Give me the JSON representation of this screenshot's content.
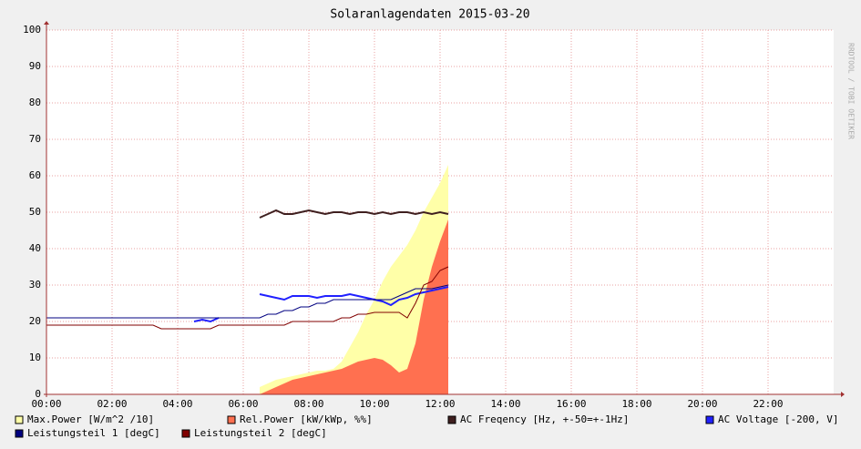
{
  "chart_data": {
    "type": "line",
    "title": "Solaranlagendaten 2015-03-20",
    "watermark": "RRDTOOL / TOBI OETIKER",
    "x": [
      0,
      0.25,
      0.5,
      0.75,
      1,
      1.25,
      1.5,
      1.75,
      2,
      2.25,
      2.5,
      2.75,
      3,
      3.25,
      3.5,
      3.75,
      4,
      4.25,
      4.5,
      4.75,
      5,
      5.25,
      5.5,
      5.75,
      6,
      6.25,
      6.5,
      6.75,
      7,
      7.25,
      7.5,
      7.75,
      8,
      8.25,
      8.5,
      8.75,
      9,
      9.25,
      9.5,
      9.75,
      10,
      10.25,
      10.5,
      10.75,
      11,
      11.25,
      11.5,
      11.75,
      12,
      12.25
    ],
    "xlim": [
      0,
      24
    ],
    "xticks": [
      {
        "value": 0,
        "label": "00:00"
      },
      {
        "value": 2,
        "label": "02:00"
      },
      {
        "value": 4,
        "label": "04:00"
      },
      {
        "value": 6,
        "label": "06:00"
      },
      {
        "value": 8,
        "label": "08:00"
      },
      {
        "value": 10,
        "label": "10:00"
      },
      {
        "value": 12,
        "label": "12:00"
      },
      {
        "value": 14,
        "label": "14:00"
      },
      {
        "value": 16,
        "label": "16:00"
      },
      {
        "value": 18,
        "label": "18:00"
      },
      {
        "value": 20,
        "label": "20:00"
      },
      {
        "value": 22,
        "label": "22:00"
      }
    ],
    "ylim": [
      0,
      100
    ],
    "yticks": [
      0,
      10,
      20,
      30,
      40,
      50,
      60,
      70,
      80,
      90,
      100
    ],
    "grid": true,
    "series": [
      {
        "name": "Max.Power [W/m^2 /10]",
        "color": "#ffffa8",
        "kind": "area",
        "values": [
          null,
          null,
          null,
          null,
          null,
          null,
          null,
          null,
          null,
          null,
          null,
          null,
          null,
          null,
          null,
          null,
          null,
          null,
          null,
          null,
          null,
          null,
          null,
          null,
          null,
          null,
          2,
          3,
          4,
          4.5,
          5,
          5.5,
          6,
          6.5,
          6.5,
          7,
          9,
          13,
          17,
          22,
          26,
          31,
          35,
          38,
          41,
          45,
          50,
          54,
          58,
          63
        ]
      },
      {
        "name": "Rel.Power [kW/kWp, %%]",
        "color": "#ff7050",
        "kind": "area",
        "values": [
          null,
          null,
          null,
          null,
          null,
          null,
          null,
          null,
          null,
          null,
          null,
          null,
          null,
          null,
          null,
          null,
          null,
          null,
          null,
          null,
          null,
          null,
          null,
          null,
          null,
          null,
          0,
          1,
          2,
          3,
          4,
          4.5,
          5,
          5.5,
          6,
          6.5,
          7,
          8,
          9,
          9.5,
          10,
          9.5,
          8,
          6,
          7,
          14,
          26,
          35,
          42,
          48
        ]
      },
      {
        "name": "AC Freqency [Hz, +-50=+-1Hz]",
        "color": "#3f1f1f",
        "kind": "line",
        "values": [
          null,
          null,
          null,
          null,
          null,
          null,
          null,
          null,
          null,
          null,
          null,
          null,
          null,
          null,
          null,
          null,
          null,
          null,
          null,
          null,
          null,
          null,
          null,
          null,
          null,
          null,
          48.5,
          49.5,
          50.5,
          49.5,
          49.5,
          50,
          50.5,
          50,
          49.5,
          50,
          50,
          49.5,
          50,
          50,
          49.5,
          50,
          49.5,
          50,
          50,
          49.5,
          50,
          49.5,
          50,
          49.5
        ]
      },
      {
        "name": "AC Voltage [-200, V]",
        "color": "#2020ff",
        "kind": "line",
        "values": [
          null,
          null,
          null,
          null,
          null,
          null,
          null,
          null,
          null,
          null,
          null,
          null,
          null,
          null,
          null,
          null,
          null,
          null,
          20,
          20.5,
          20,
          21,
          null,
          null,
          null,
          null,
          27.5,
          27,
          26.5,
          26,
          27,
          27,
          27,
          26.5,
          27,
          27,
          27,
          27.5,
          27,
          26.5,
          26,
          25.5,
          24.5,
          26,
          26.5,
          27.5,
          28,
          28.5,
          29,
          29.5
        ]
      },
      {
        "name": "Leistungsteil 1 [degC]",
        "color": "#000080",
        "kind": "line",
        "values": [
          21,
          21,
          21,
          21,
          21,
          21,
          21,
          21,
          21,
          21,
          21,
          21,
          21,
          21,
          21,
          21,
          21,
          21,
          21,
          21,
          21,
          21,
          21,
          21,
          21,
          21,
          21,
          22,
          22,
          23,
          23,
          24,
          24,
          25,
          25,
          26,
          26,
          26,
          26,
          26,
          26,
          26,
          26,
          27,
          28,
          29,
          29,
          29,
          29.5,
          30
        ]
      },
      {
        "name": "Leistungsteil 2 [degC]",
        "color": "#800000",
        "kind": "line",
        "values": [
          19,
          19,
          19,
          19,
          19,
          19,
          19,
          19,
          19,
          19,
          19,
          19,
          19,
          19,
          18,
          18,
          18,
          18,
          18,
          18,
          18,
          19,
          19,
          19,
          19,
          19,
          19,
          19,
          19,
          19,
          20,
          20,
          20,
          20,
          20,
          20,
          21,
          21,
          22,
          22,
          22.5,
          22.5,
          22.5,
          22.5,
          21,
          25,
          30,
          31,
          34,
          35
        ]
      }
    ]
  }
}
